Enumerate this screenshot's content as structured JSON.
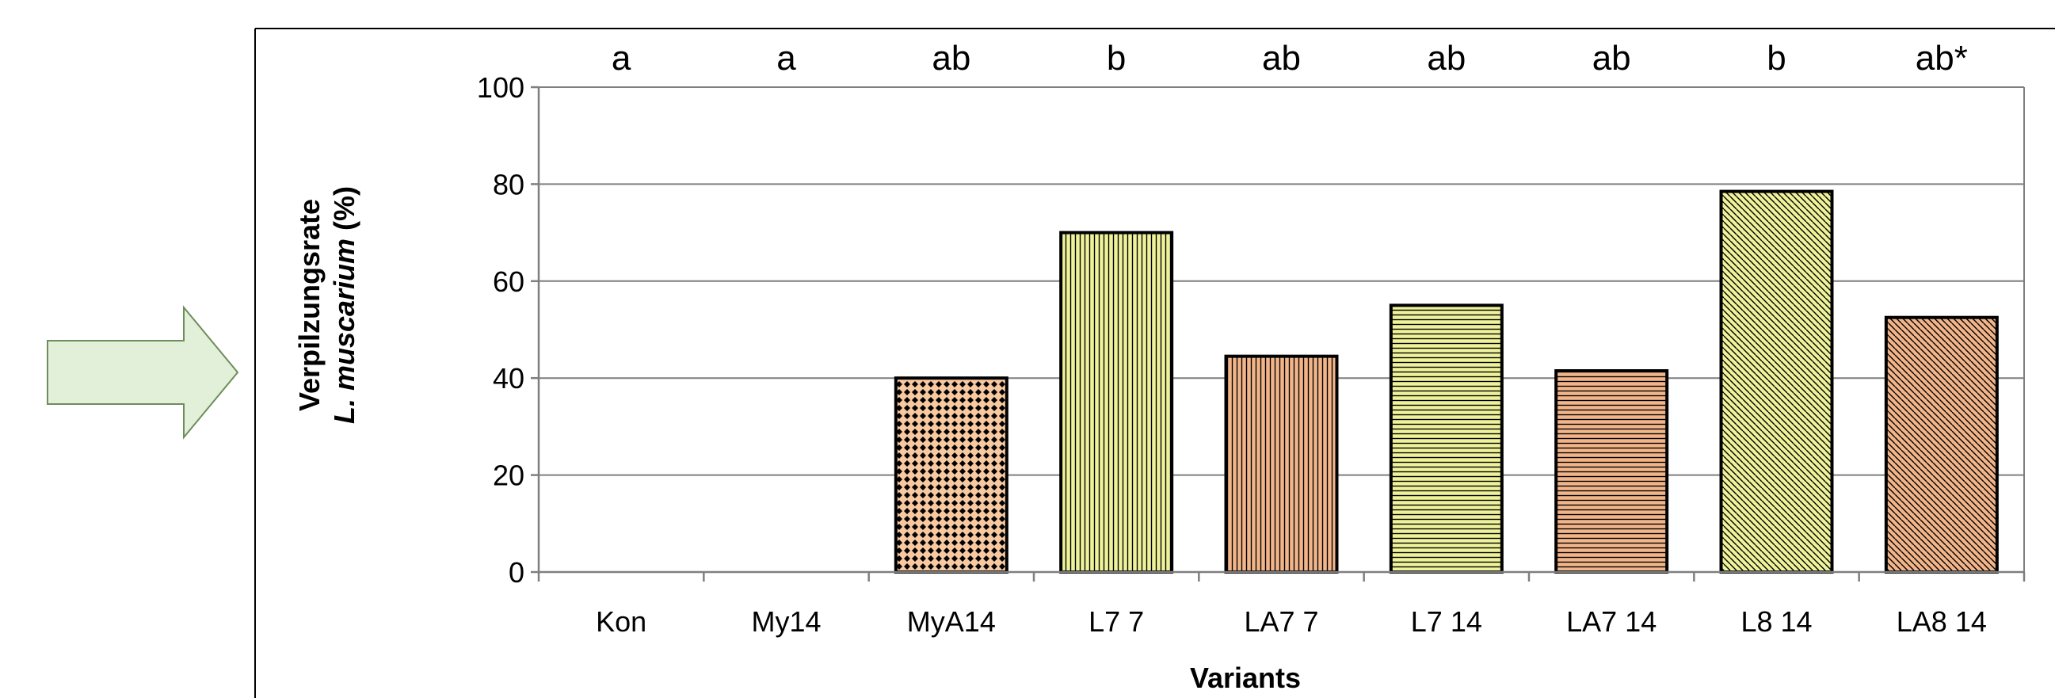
{
  "chart_data": {
    "type": "bar",
    "categories": [
      "Kon",
      "My14",
      "MyA14",
      "L7 7",
      "LA7 7",
      "L7 14",
      "LA7 14",
      "L8 14",
      "LA8 14"
    ],
    "values": [
      0,
      0,
      40,
      70,
      44.5,
      55,
      41.5,
      78.5,
      52.5
    ],
    "significance_letters": [
      "a",
      "a",
      "ab",
      "b",
      "ab",
      "ab",
      "ab",
      "b",
      "ab*"
    ],
    "bar_styles": [
      {
        "fill": "#f8c9a0",
        "pattern": "none"
      },
      {
        "fill": "#f8c9a0",
        "pattern": "none"
      },
      {
        "fill": "#f8c9a0",
        "pattern": "dots"
      },
      {
        "fill": "#eef29a",
        "pattern": "vertical"
      },
      {
        "fill": "#f2b58a",
        "pattern": "vertical"
      },
      {
        "fill": "#eef29a",
        "pattern": "horizontal"
      },
      {
        "fill": "#f2b58a",
        "pattern": "horizontal"
      },
      {
        "fill": "#eef29a",
        "pattern": "diagonal"
      },
      {
        "fill": "#f2b58a",
        "pattern": "diagonal"
      }
    ],
    "title": "",
    "xlabel": "Variants",
    "ylabel_line1": "Verpilzungsrate",
    "ylabel_line2_italic": "L. muscarium",
    "ylabel_line2_suffix": " (%)",
    "ylim": [
      0,
      100
    ],
    "yticks": [
      0,
      20,
      40,
      60,
      80,
      100
    ],
    "grid": true
  },
  "arrow": {
    "fill": "#e2efd9",
    "stroke": "#6d8d5a"
  }
}
